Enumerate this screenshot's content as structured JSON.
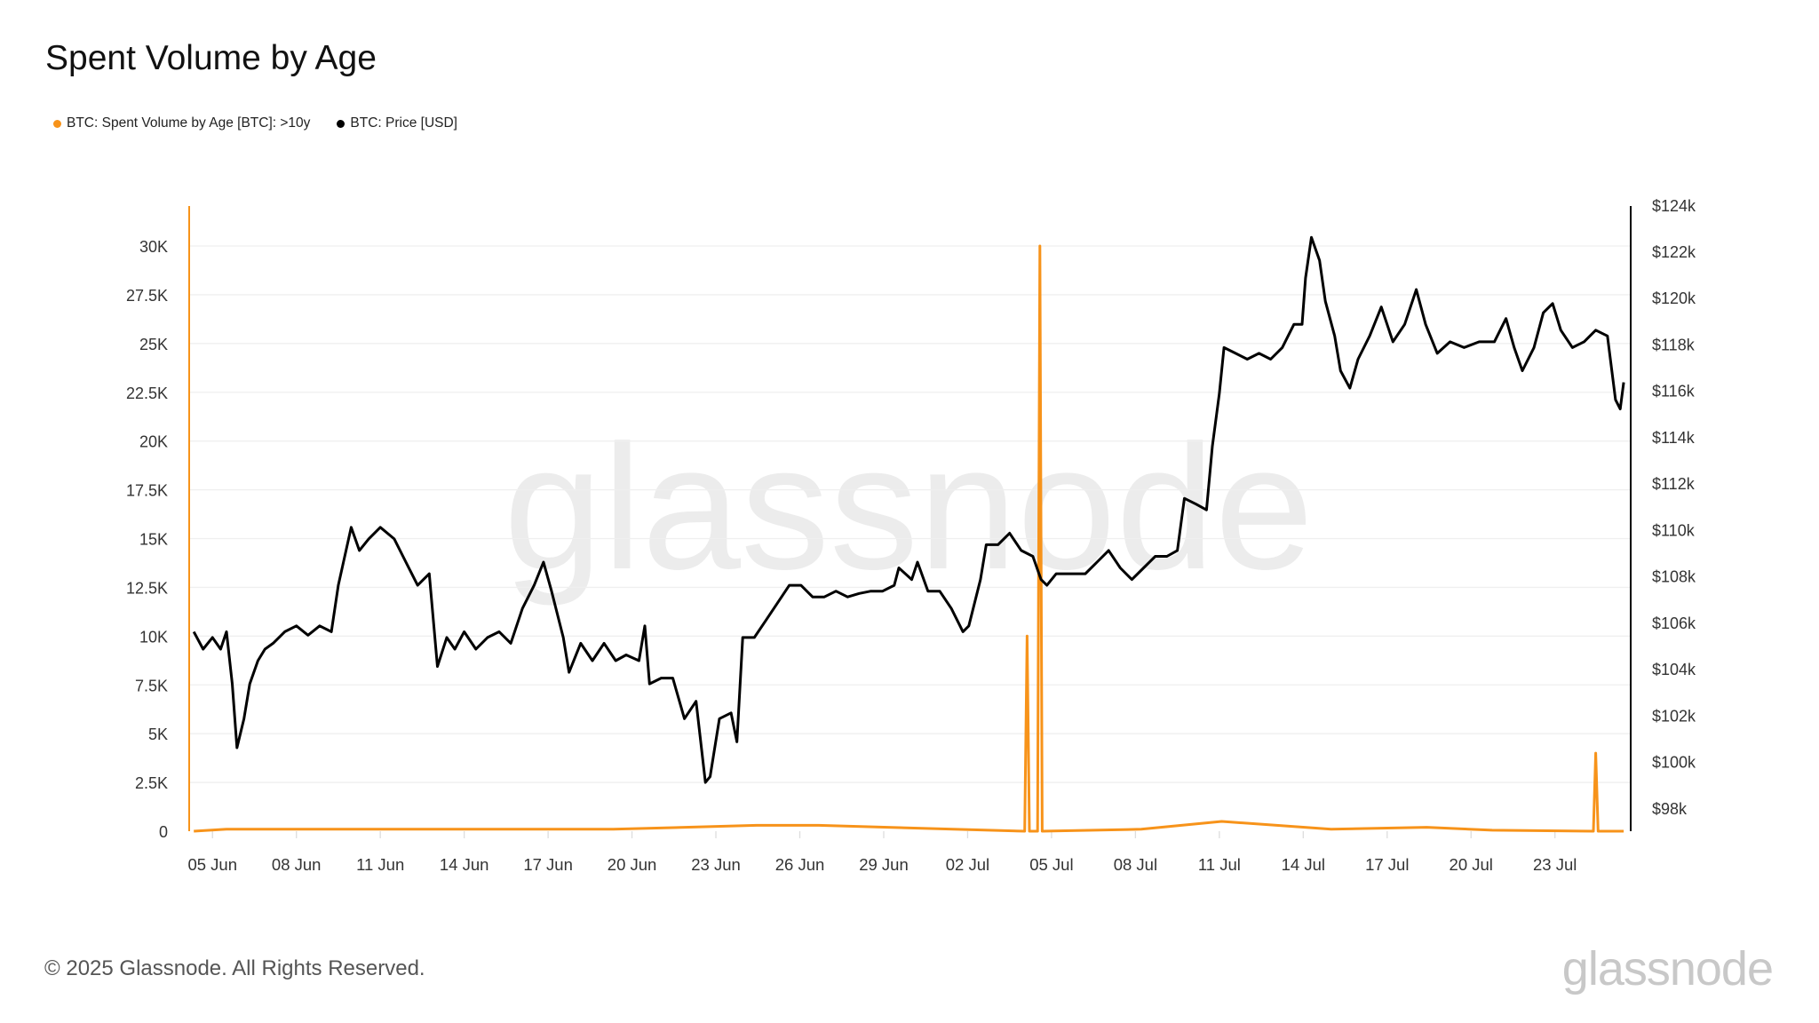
{
  "title": "Spent Volume by Age",
  "legend": [
    {
      "label": "BTC: Spent Volume by Age [BTC]: >10y",
      "color": "#f7931a"
    },
    {
      "label": "BTC: Price [USD]",
      "color": "#000000"
    }
  ],
  "footer": "© 2025 Glassnode. All Rights Reserved.",
  "logo": "glassnode",
  "watermark": "glassnode",
  "chart_data": {
    "type": "line",
    "title": "Spent Volume by Age",
    "x_ticks": [
      "05 Jun",
      "08 Jun",
      "11 Jun",
      "14 Jun",
      "17 Jun",
      "20 Jun",
      "23 Jun",
      "26 Jun",
      "29 Jun",
      "02 Jul",
      "05 Jul",
      "08 Jul",
      "11 Jul",
      "14 Jul",
      "17 Jul",
      "20 Jul",
      "23 Jul"
    ],
    "x_tick_dates": [
      "2025-06-05",
      "2025-06-08",
      "2025-06-11",
      "2025-06-14",
      "2025-06-17",
      "2025-06-20",
      "2025-06-23",
      "2025-06-26",
      "2025-06-29",
      "2025-07-02",
      "2025-07-05",
      "2025-07-08",
      "2025-07-11",
      "2025-07-14",
      "2025-07-17",
      "2025-07-20",
      "2025-07-23"
    ],
    "xlim": [
      "2025-06-04T04:00",
      "2025-07-25T17:00"
    ],
    "y_left": {
      "ticks": [
        "0",
        "2.5K",
        "5K",
        "7.5K",
        "10K",
        "12.5K",
        "15K",
        "17.5K",
        "20K",
        "22.5K",
        "25K",
        "27.5K",
        "30K"
      ],
      "tick_values": [
        0,
        2500,
        5000,
        7500,
        10000,
        12500,
        15000,
        17500,
        20000,
        22500,
        25000,
        27500,
        30000
      ],
      "ylim": [
        0,
        32000
      ]
    },
    "y_right": {
      "ticks": [
        "$98k",
        "$100k",
        "$102k",
        "$104k",
        "$106k",
        "$108k",
        "$110k",
        "$112k",
        "$114k",
        "$116k",
        "$118k",
        "$120k",
        "$122k",
        "$124k"
      ],
      "tick_values": [
        98,
        100,
        102,
        104,
        106,
        108,
        110,
        112,
        114,
        116,
        118,
        120,
        122,
        124
      ],
      "ylim": [
        97,
        124
      ]
    },
    "grid": true,
    "legend_position": "top-left",
    "series": [
      {
        "name": "BTC: Spent Volume by Age [BTC]: >10y",
        "axis": "left",
        "type": "bar-line",
        "color": "#f7931a",
        "points": [
          [
            "2025-06-04T08:00",
            0
          ],
          [
            "2025-06-05T12:00",
            100
          ],
          [
            "2025-06-17T00:00",
            100
          ],
          [
            "2025-06-19T08:00",
            100
          ],
          [
            "2025-06-24T11:00",
            300
          ],
          [
            "2025-06-26T16:00",
            300
          ],
          [
            "2025-07-04T01:00",
            0
          ],
          [
            "2025-07-04T03:00",
            10000
          ],
          [
            "2025-07-04T05:00",
            0
          ],
          [
            "2025-07-04T12:00",
            0
          ],
          [
            "2025-07-04T14:00",
            30000
          ],
          [
            "2025-07-04T16:00",
            0
          ],
          [
            "2025-07-08T05:00",
            100
          ],
          [
            "2025-07-11T02:00",
            500
          ],
          [
            "2025-07-15T00:00",
            100
          ],
          [
            "2025-07-18T10:00",
            200
          ],
          [
            "2025-07-20T18:00",
            50
          ],
          [
            "2025-07-24T09:00",
            0
          ],
          [
            "2025-07-24T11:00",
            4000
          ],
          [
            "2025-07-24T13:00",
            0
          ],
          [
            "2025-07-25T11:00",
            0
          ]
        ]
      },
      {
        "name": "BTC: Price [USD]",
        "axis": "right",
        "unit": "k USD",
        "color": "#000000",
        "points": [
          [
            "2025-06-04T08:00",
            105.6
          ],
          [
            "2025-06-04T16:00",
            104.85
          ],
          [
            "2025-06-05T00:00",
            105.35
          ],
          [
            "2025-06-05T07:00",
            104.85
          ],
          [
            "2025-06-05T12:00",
            105.6
          ],
          [
            "2025-06-05T17:00",
            103.35
          ],
          [
            "2025-06-05T21:00",
            100.6
          ],
          [
            "2025-06-06T03:00",
            101.85
          ],
          [
            "2025-06-06T08:00",
            103.35
          ],
          [
            "2025-06-06T15:00",
            104.35
          ],
          [
            "2025-06-06T21:00",
            104.85
          ],
          [
            "2025-06-07T04:00",
            105.1
          ],
          [
            "2025-06-07T14:00",
            105.6
          ],
          [
            "2025-06-08T00:00",
            105.85
          ],
          [
            "2025-06-08T10:00",
            105.45
          ],
          [
            "2025-06-08T20:00",
            105.85
          ],
          [
            "2025-06-09T06:00",
            105.6
          ],
          [
            "2025-06-09T12:00",
            107.6
          ],
          [
            "2025-06-09T23:00",
            110.1
          ],
          [
            "2025-06-10T06:00",
            109.1
          ],
          [
            "2025-06-10T14:00",
            109.6
          ],
          [
            "2025-06-11T00:00",
            110.1
          ],
          [
            "2025-06-11T12:00",
            109.6
          ],
          [
            "2025-06-11T22:00",
            108.6
          ],
          [
            "2025-06-12T08:00",
            107.6
          ],
          [
            "2025-06-12T18:00",
            108.1
          ],
          [
            "2025-06-13T01:00",
            104.1
          ],
          [
            "2025-06-13T09:00",
            105.35
          ],
          [
            "2025-06-13T16:00",
            104.85
          ],
          [
            "2025-06-14T00:00",
            105.6
          ],
          [
            "2025-06-14T10:00",
            104.85
          ],
          [
            "2025-06-14T20:00",
            105.35
          ],
          [
            "2025-06-15T06:00",
            105.6
          ],
          [
            "2025-06-15T16:00",
            105.1
          ],
          [
            "2025-06-16T02:00",
            106.6
          ],
          [
            "2025-06-16T12:00",
            107.6
          ],
          [
            "2025-06-16T20:00",
            108.6
          ],
          [
            "2025-06-17T03:00",
            107.35
          ],
          [
            "2025-06-17T13:00",
            105.35
          ],
          [
            "2025-06-17T18:00",
            103.85
          ],
          [
            "2025-06-18T04:00",
            105.1
          ],
          [
            "2025-06-18T14:00",
            104.35
          ],
          [
            "2025-06-19T00:00",
            105.1
          ],
          [
            "2025-06-19T10:00",
            104.35
          ],
          [
            "2025-06-19T19:00",
            104.6
          ],
          [
            "2025-06-20T06:00",
            104.35
          ],
          [
            "2025-06-20T11:00",
            105.85
          ],
          [
            "2025-06-20T15:00",
            103.35
          ],
          [
            "2025-06-21T01:00",
            103.6
          ],
          [
            "2025-06-21T11:00",
            103.6
          ],
          [
            "2025-06-21T21:00",
            101.85
          ],
          [
            "2025-06-22T07:00",
            102.6
          ],
          [
            "2025-06-22T15:00",
            99.1
          ],
          [
            "2025-06-22T19:00",
            99.35
          ],
          [
            "2025-06-23T03:00",
            101.85
          ],
          [
            "2025-06-23T13:00",
            102.1
          ],
          [
            "2025-06-23T18:00",
            100.85
          ],
          [
            "2025-06-23T23:00",
            105.35
          ],
          [
            "2025-06-24T09:00",
            105.35
          ],
          [
            "2025-06-24T19:00",
            106.1
          ],
          [
            "2025-06-25T05:00",
            106.85
          ],
          [
            "2025-06-25T15:00",
            107.6
          ],
          [
            "2025-06-26T01:00",
            107.6
          ],
          [
            "2025-06-26T11:00",
            107.1
          ],
          [
            "2025-06-26T21:00",
            107.1
          ],
          [
            "2025-06-27T07:00",
            107.35
          ],
          [
            "2025-06-27T17:00",
            107.1
          ],
          [
            "2025-06-28T03:00",
            107.25
          ],
          [
            "2025-06-28T13:00",
            107.35
          ],
          [
            "2025-06-28T23:00",
            107.35
          ],
          [
            "2025-06-29T09:00",
            107.6
          ],
          [
            "2025-06-29T13:00",
            108.35
          ],
          [
            "2025-06-30T00:00",
            107.85
          ],
          [
            "2025-06-30T05:00",
            108.6
          ],
          [
            "2025-06-30T14:00",
            107.35
          ],
          [
            "2025-07-01T00:00",
            107.35
          ],
          [
            "2025-07-01T10:00",
            106.6
          ],
          [
            "2025-07-01T20:00",
            105.6
          ],
          [
            "2025-07-02T01:00",
            105.85
          ],
          [
            "2025-07-02T11:00",
            107.85
          ],
          [
            "2025-07-02T16:00",
            109.35
          ],
          [
            "2025-07-03T02:00",
            109.35
          ],
          [
            "2025-07-03T12:00",
            109.85
          ],
          [
            "2025-07-03T22:00",
            109.1
          ],
          [
            "2025-07-04T08:00",
            108.85
          ],
          [
            "2025-07-04T15:00",
            107.85
          ],
          [
            "2025-07-04T20:00",
            107.6
          ],
          [
            "2025-07-05T04:00",
            108.1
          ],
          [
            "2025-07-05T14:00",
            108.1
          ],
          [
            "2025-07-06T05:00",
            108.1
          ],
          [
            "2025-07-06T15:00",
            108.6
          ],
          [
            "2025-07-07T01:00",
            109.1
          ],
          [
            "2025-07-07T11:00",
            108.35
          ],
          [
            "2025-07-07T21:00",
            107.85
          ],
          [
            "2025-07-08T07:00",
            108.35
          ],
          [
            "2025-07-08T17:00",
            108.85
          ],
          [
            "2025-07-09T03:00",
            108.85
          ],
          [
            "2025-07-09T12:00",
            109.1
          ],
          [
            "2025-07-09T18:00",
            111.35
          ],
          [
            "2025-07-10T04:00",
            111.1
          ],
          [
            "2025-07-10T13:00",
            110.85
          ],
          [
            "2025-07-10T18:00",
            113.6
          ],
          [
            "2025-07-11T00:00",
            115.85
          ],
          [
            "2025-07-11T04:00",
            117.85
          ],
          [
            "2025-07-11T14:00",
            117.6
          ],
          [
            "2025-07-12T00:00",
            117.35
          ],
          [
            "2025-07-12T10:00",
            117.6
          ],
          [
            "2025-07-12T20:00",
            117.35
          ],
          [
            "2025-07-13T06:00",
            117.85
          ],
          [
            "2025-07-13T16:00",
            118.85
          ],
          [
            "2025-07-13T23:00",
            118.85
          ],
          [
            "2025-07-14T02:00",
            120.85
          ],
          [
            "2025-07-14T07:00",
            122.6
          ],
          [
            "2025-07-14T14:00",
            121.6
          ],
          [
            "2025-07-14T19:00",
            119.85
          ],
          [
            "2025-07-15T03:00",
            118.35
          ],
          [
            "2025-07-15T08:00",
            116.85
          ],
          [
            "2025-07-15T16:00",
            116.1
          ],
          [
            "2025-07-15T23:00",
            117.35
          ],
          [
            "2025-07-16T09:00",
            118.35
          ],
          [
            "2025-07-16T19:00",
            119.6
          ],
          [
            "2025-07-17T05:00",
            118.1
          ],
          [
            "2025-07-17T15:00",
            118.85
          ],
          [
            "2025-07-18T01:00",
            120.35
          ],
          [
            "2025-07-18T09:00",
            118.85
          ],
          [
            "2025-07-18T19:00",
            117.6
          ],
          [
            "2025-07-19T06:00",
            118.1
          ],
          [
            "2025-07-19T18:00",
            117.85
          ],
          [
            "2025-07-20T07:00",
            118.1
          ],
          [
            "2025-07-20T20:00",
            118.1
          ],
          [
            "2025-07-21T06:00",
            119.1
          ],
          [
            "2025-07-21T13:00",
            117.85
          ],
          [
            "2025-07-21T20:00",
            116.85
          ],
          [
            "2025-07-22T06:00",
            117.85
          ],
          [
            "2025-07-22T14:00",
            119.35
          ],
          [
            "2025-07-22T22:00",
            119.75
          ],
          [
            "2025-07-23T05:00",
            118.6
          ],
          [
            "2025-07-23T15:00",
            117.85
          ],
          [
            "2025-07-24T01:00",
            118.1
          ],
          [
            "2025-07-24T11:00",
            118.6
          ],
          [
            "2025-07-24T21:00",
            118.35
          ],
          [
            "2025-07-25T04:00",
            115.6
          ],
          [
            "2025-07-25T08:00",
            115.2
          ],
          [
            "2025-07-25T11:00",
            116.35
          ]
        ]
      }
    ]
  }
}
